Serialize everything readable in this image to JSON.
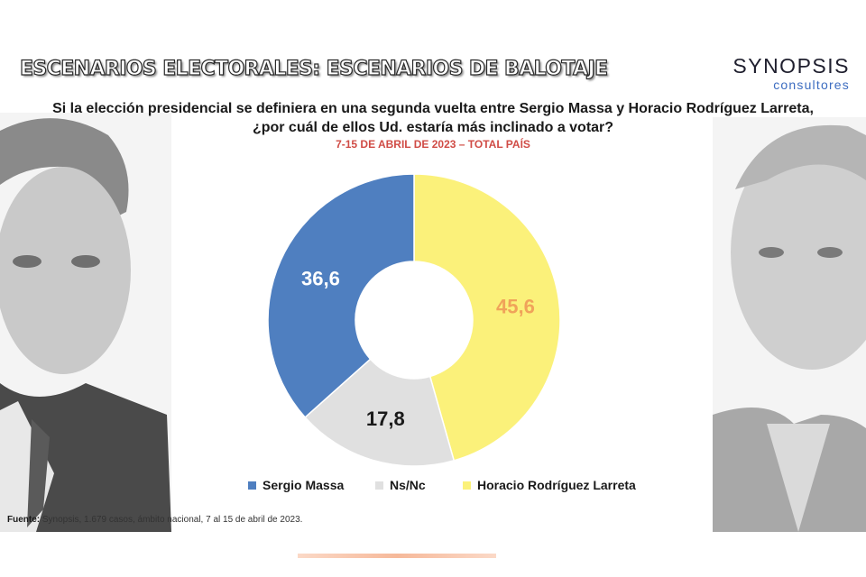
{
  "header": {
    "title": "ESCENARIOS ELECTORALES: ESCENARIOS DE BALOTAJE",
    "logo_name": "SYNOPSIS",
    "logo_sub": "consultores"
  },
  "question_lines": [
    "Si la elección presidencial se definiera en una segunda vuelta entre Sergio Massa y Horacio Rodríguez Larreta,",
    "¿por cuál de ellos Ud. estaría más inclinado a votar?"
  ],
  "subtitle": "7-15 DE ABRIL DE 2023 – TOTAL PAÍS",
  "chart_data": {
    "type": "pie",
    "variant": "donut",
    "title": "",
    "slices": [
      {
        "label": "Horacio Rodríguez Larreta",
        "value": 45.6,
        "display": "45,6",
        "color": "#fbf17a",
        "label_color": "#f0a35a"
      },
      {
        "label": "Ns/Nc",
        "value": 17.8,
        "display": "17,8",
        "color": "#e0e0e0",
        "label_color": "#1a1a1a"
      },
      {
        "label": "Sergio Massa",
        "value": 36.6,
        "display": "36,6",
        "color": "#4f7fc0",
        "label_color": "#ffffff"
      }
    ],
    "legend": [
      {
        "label": "Sergio Massa",
        "color": "#4f7fc0"
      },
      {
        "label": "Ns/Nc",
        "color": "#e0e0e0"
      },
      {
        "label": "Horacio Rodríguez Larreta",
        "color": "#fbf17a"
      }
    ],
    "legend_position": "bottom"
  },
  "source": {
    "label": "Fuente:",
    "text": " Synopsis, 1.679 casos, ámbito nacional, 7 al 15 de abril de 2023."
  }
}
